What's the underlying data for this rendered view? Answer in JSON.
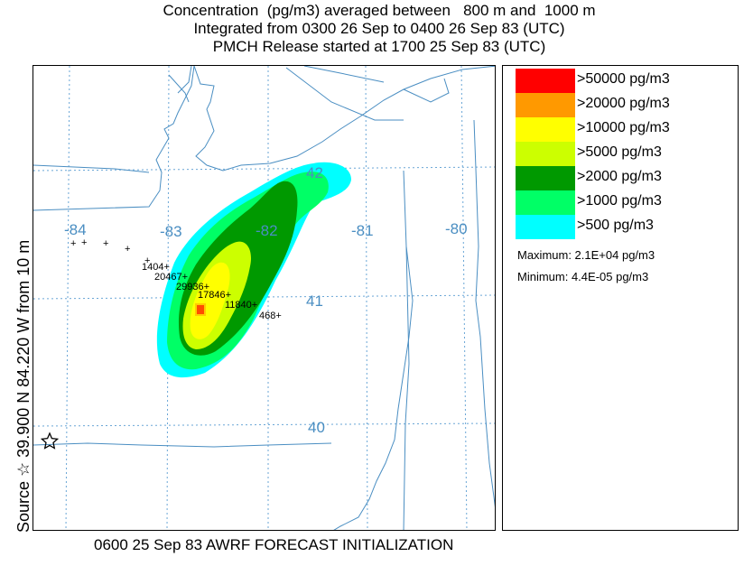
{
  "title": {
    "line1": "Concentration  (pg/m3) averaged between   800 m and  1000 m",
    "line2": "Integrated from 0300 26 Sep to 0400 26 Sep 83 (UTC)",
    "line3": "PMCH Release started at 1700 25 Sep 83 (UTC)"
  },
  "side_label": "Source ☆ 39.900  N  84.220  W   from  10 m",
  "footer": "0600 25 Sep 83 AWRF FORECAST INITIALIZATION",
  "map": {
    "longitude_labels": [
      "-84",
      "-83",
      "-82",
      "-81",
      "-80"
    ],
    "latitude_labels": [
      "42",
      "41",
      "40"
    ],
    "point_values": [
      "1404+",
      "20467+",
      "29936+",
      "17846+",
      "11840+",
      "468+"
    ],
    "source_marker": "star-icon",
    "colors": {
      "grid": "#6aa6d6",
      "boundaries": "#4a8ec2"
    }
  },
  "legend": {
    "items": [
      {
        "label": ">50000 pg/m3",
        "color": "#ff0000"
      },
      {
        "label": ">20000 pg/m3",
        "color": "#ff9900"
      },
      {
        "label": ">10000 pg/m3",
        "color": "#ffff00"
      },
      {
        "label": ">5000 pg/m3",
        "color": "#ccff00"
      },
      {
        "label": ">2000 pg/m3",
        "color": "#009900"
      },
      {
        "label": ">1000 pg/m3",
        "color": "#00ff66"
      },
      {
        "label": ">500 pg/m3",
        "color": "#00ffff"
      }
    ],
    "maximum": "Maximum: 2.1E+04 pg/m3",
    "minimum": "Minimum: 4.4E-05 pg/m3"
  }
}
